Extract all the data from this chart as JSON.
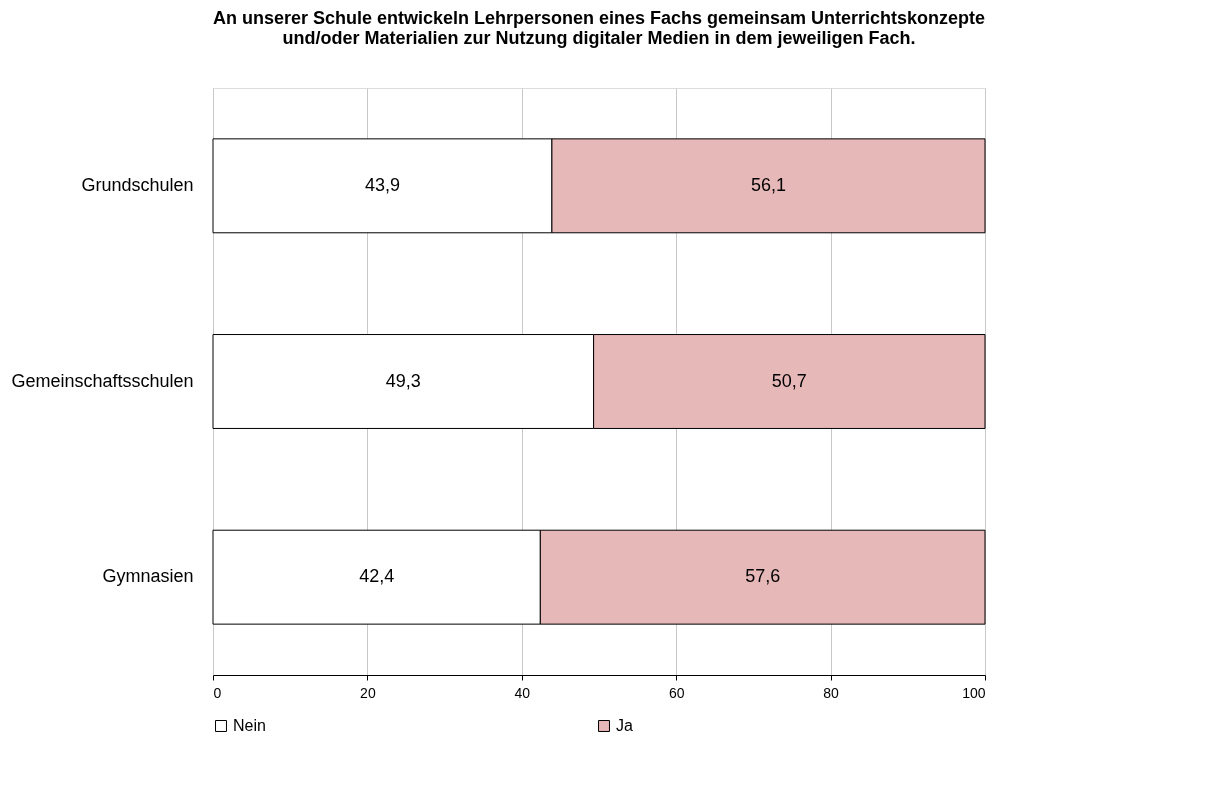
{
  "chart_data": {
    "type": "bar",
    "orientation": "horizontal",
    "stacked": true,
    "title": "An unserer Schule entwickeln Lehrpersonen eines Fachs gemeinsam Unterrichtskonzepte\nund/oder Materialien zur Nutzung digitaler Medien in dem jeweiligen Fach.",
    "categories": [
      "Grundschulen",
      "Gemeinschaftsschulen",
      "Gymnasien"
    ],
    "series": [
      {
        "name": "Nein",
        "color": "#ffffff",
        "values": [
          43.9,
          49.3,
          42.4
        ],
        "value_labels": [
          "43,9",
          "49,3",
          "42,4"
        ]
      },
      {
        "name": "Ja",
        "color": "#e6b8b7",
        "values": [
          56.1,
          50.7,
          57.6
        ],
        "value_labels": [
          "56,1",
          "50,7",
          "57,6"
        ]
      }
    ],
    "xlim": [
      0,
      100
    ],
    "xticks": [
      0,
      20,
      40,
      60,
      80,
      100
    ],
    "grid": "x",
    "legend": "bottom"
  }
}
